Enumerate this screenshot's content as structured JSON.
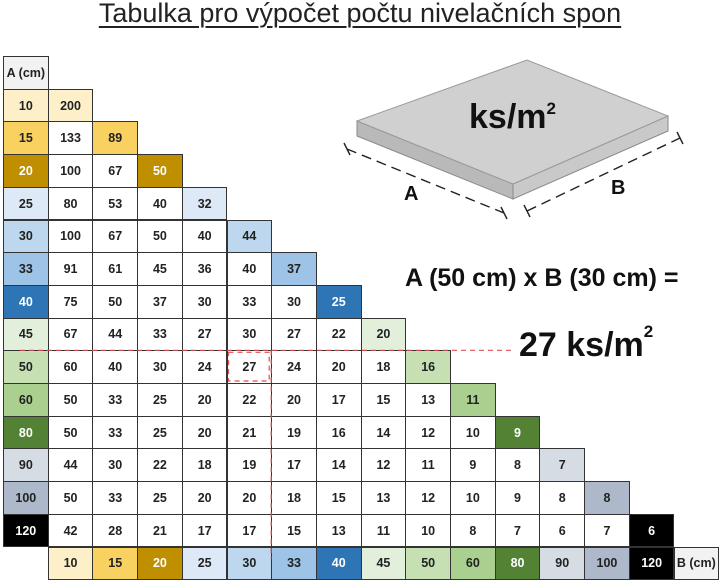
{
  "title": "Tabulka pro výpočet počtu nivelačních spon",
  "table": {
    "row_header": "A (cm)",
    "col_header": "B (cm)",
    "sizes": [
      10,
      15,
      20,
      25,
      30,
      33,
      40,
      45,
      50,
      60,
      80,
      90,
      100,
      120
    ],
    "size_colors": [
      "#fdf0c8",
      "#f9d160",
      "#bf8f00",
      "#dde9f6",
      "#bdd7ee",
      "#9dc3e6",
      "#2e75b6",
      "#e2efda",
      "#c6e0b4",
      "#a9d08e",
      "#548235",
      "#d6dce4",
      "#adb9ca",
      "#000000"
    ],
    "white_text_sizes": [
      20,
      40,
      80,
      120
    ],
    "rows": [
      [
        200
      ],
      [
        133,
        89
      ],
      [
        100,
        67,
        50
      ],
      [
        80,
        53,
        40,
        32
      ],
      [
        100,
        67,
        50,
        40,
        44
      ],
      [
        91,
        61,
        45,
        36,
        40,
        37
      ],
      [
        75,
        50,
        37,
        30,
        33,
        30,
        25
      ],
      [
        67,
        44,
        33,
        27,
        30,
        27,
        22,
        20
      ],
      [
        60,
        40,
        30,
        24,
        27,
        24,
        20,
        18,
        16
      ],
      [
        50,
        33,
        25,
        20,
        22,
        20,
        17,
        15,
        13,
        11
      ],
      [
        50,
        33,
        25,
        20,
        21,
        19,
        16,
        14,
        12,
        10,
        9
      ],
      [
        44,
        30,
        22,
        18,
        19,
        17,
        14,
        12,
        11,
        9,
        8,
        7
      ],
      [
        50,
        33,
        25,
        20,
        20,
        18,
        15,
        13,
        12,
        10,
        9,
        8,
        8
      ],
      [
        42,
        28,
        21,
        17,
        17,
        15,
        13,
        11,
        10,
        8,
        7,
        6,
        7,
        6
      ]
    ],
    "highlight": {
      "a": 50,
      "b": 30,
      "value": 27
    },
    "highlight_color": "#e05050",
    "header_color": "#f2f2f2"
  },
  "illustration": {
    "unit_label": "ks/m",
    "unit_sup": "2",
    "dim_a": "A",
    "dim_b": "B"
  },
  "example": {
    "formula": "A (50 cm) x B (30 cm) =",
    "result": "27 ks/m",
    "result_sup": "2"
  }
}
